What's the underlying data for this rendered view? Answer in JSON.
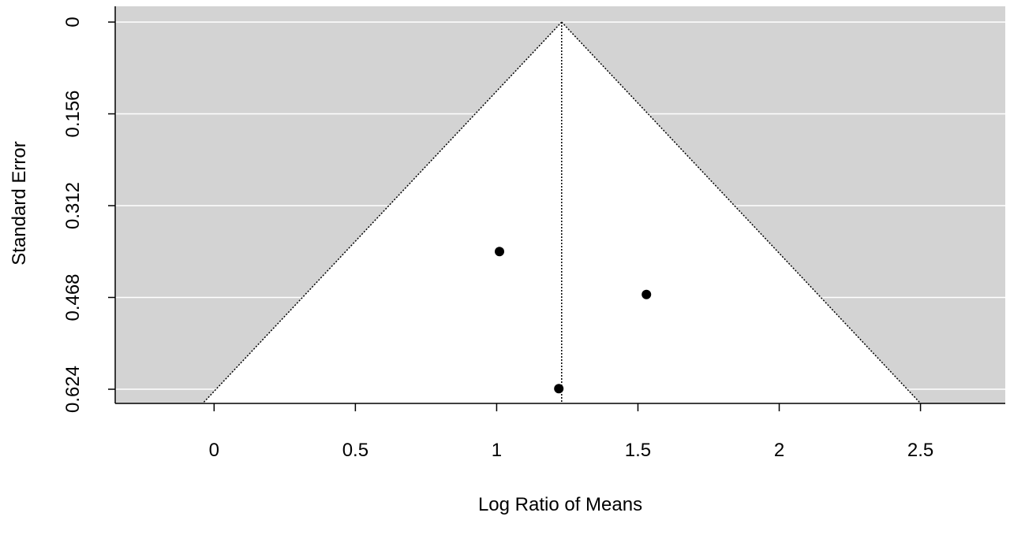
{
  "chart_data": {
    "type": "scatter",
    "subtype": "funnel-plot",
    "title": "",
    "xlabel": "Log Ratio of Means",
    "ylabel": "Standard Error",
    "xlim": [
      -0.35,
      2.8
    ],
    "ylim": [
      0,
      0.65
    ],
    "y_reversed": true,
    "x_ticks": [
      0,
      0.5,
      1,
      1.5,
      2,
      2.5
    ],
    "x_tick_labels": [
      "0",
      "0.5",
      "1",
      "1.5",
      "2",
      "2.5"
    ],
    "y_ticks": [
      0,
      0.156,
      0.312,
      0.468,
      0.624
    ],
    "y_tick_labels": [
      "0",
      "0.156",
      "0.312",
      "0.468",
      "0.624"
    ],
    "grid": "horizontal",
    "summary_estimate": 1.23,
    "funnel_z": 1.96,
    "points": [
      {
        "x": 1.01,
        "y": 0.39
      },
      {
        "x": 1.53,
        "y": 0.463
      },
      {
        "x": 1.22,
        "y": 0.623
      }
    ],
    "colors": {
      "background": "#d3d3d3",
      "funnel": "#ffffff",
      "gridline": "#ffffff",
      "point": "#000000",
      "axis": "#000000"
    }
  }
}
